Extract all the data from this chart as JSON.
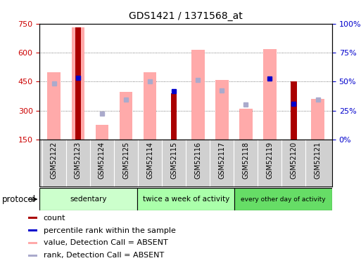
{
  "title": "GDS1421 / 1371568_at",
  "samples": [
    "GSM52122",
    "GSM52123",
    "GSM52124",
    "GSM52125",
    "GSM52114",
    "GSM52115",
    "GSM52116",
    "GSM52117",
    "GSM52118",
    "GSM52119",
    "GSM52120",
    "GSM52121"
  ],
  "count_values": [
    null,
    730,
    null,
    null,
    null,
    390,
    null,
    null,
    null,
    null,
    450,
    null
  ],
  "percentile_values_left": [
    null,
    470,
    null,
    null,
    null,
    400,
    null,
    null,
    null,
    465,
    335,
    null
  ],
  "absent_value_bars": [
    500,
    730,
    225,
    395,
    500,
    null,
    615,
    460,
    310,
    620,
    null,
    360
  ],
  "absent_rank_markers": [
    440,
    null,
    285,
    355,
    450,
    null,
    460,
    405,
    330,
    null,
    null,
    355
  ],
  "ylim_left": [
    150,
    750
  ],
  "ylim_right": [
    0,
    100
  ],
  "yticks_left": [
    150,
    300,
    450,
    600,
    750
  ],
  "yticks_right": [
    0,
    25,
    50,
    75,
    100
  ],
  "protocol_groups": [
    {
      "label": "sedentary",
      "start": 0,
      "end": 4,
      "color": "#ccffcc"
    },
    {
      "label": "twice a week of activity",
      "start": 4,
      "end": 8,
      "color": "#aaffaa"
    },
    {
      "label": "every other day of activity",
      "start": 8,
      "end": 12,
      "color": "#66dd66"
    }
  ],
  "count_color": "#aa0000",
  "percentile_color": "#0000cc",
  "absent_value_color": "#ffaaaa",
  "absent_rank_color": "#aaaacc",
  "grid_color": "#555555",
  "left_axis_color": "#cc0000",
  "right_axis_color": "#0000cc",
  "xtick_bg_color": "#d0d0d0",
  "legend_items": [
    {
      "color": "#aa0000",
      "label": "count"
    },
    {
      "color": "#0000cc",
      "label": "percentile rank within the sample"
    },
    {
      "color": "#ffaaaa",
      "label": "value, Detection Call = ABSENT"
    },
    {
      "color": "#aaaacc",
      "label": "rank, Detection Call = ABSENT"
    }
  ]
}
